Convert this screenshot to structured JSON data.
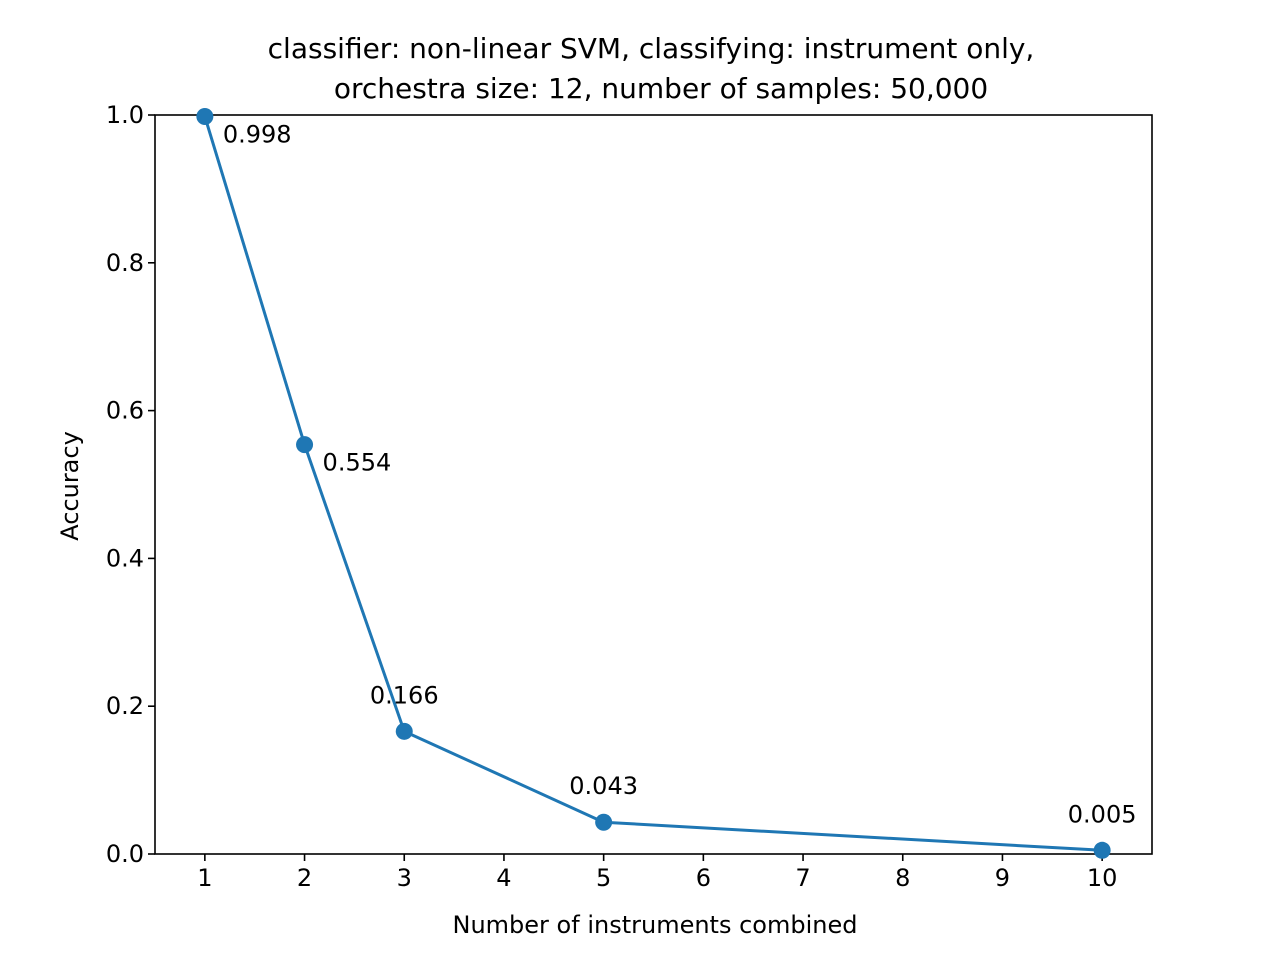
{
  "chart_data": {
    "type": "line",
    "title_lines": [
      "classifier: non-linear SVM, classifying: instrument only,",
      "orchestra size: 12, number of samples: 50,000"
    ],
    "xlabel": "Number of instruments combined",
    "ylabel": "Accuracy",
    "xlim": [
      0.5,
      10.5
    ],
    "ylim": [
      0.0,
      1.0
    ],
    "xticks": [
      1,
      2,
      3,
      4,
      5,
      6,
      7,
      8,
      9,
      10
    ],
    "xtick_labels": [
      "1",
      "2",
      "3",
      "4",
      "5",
      "6",
      "7",
      "8",
      "9",
      "10"
    ],
    "yticks": [
      0.0,
      0.2,
      0.4,
      0.6,
      0.8,
      1.0
    ],
    "ytick_labels": [
      "0.0",
      "0.2",
      "0.4",
      "0.6",
      "0.8",
      "1.0"
    ],
    "grid": false,
    "series": [
      {
        "color": "#1f77b4",
        "marker": "circle",
        "x": [
          1,
          2,
          3,
          5,
          10
        ],
        "y": [
          0.998,
          0.554,
          0.166,
          0.043,
          0.005
        ]
      }
    ],
    "annotations": [
      {
        "text": "0.998",
        "x": 1,
        "y": 0.998,
        "position": "below-right"
      },
      {
        "text": "0.554",
        "x": 2,
        "y": 0.554,
        "position": "below-right"
      },
      {
        "text": "0.166",
        "x": 3,
        "y": 0.166,
        "position": "above"
      },
      {
        "text": "0.043",
        "x": 5,
        "y": 0.043,
        "position": "above"
      },
      {
        "text": "0.005",
        "x": 10,
        "y": 0.005,
        "position": "above"
      }
    ]
  }
}
